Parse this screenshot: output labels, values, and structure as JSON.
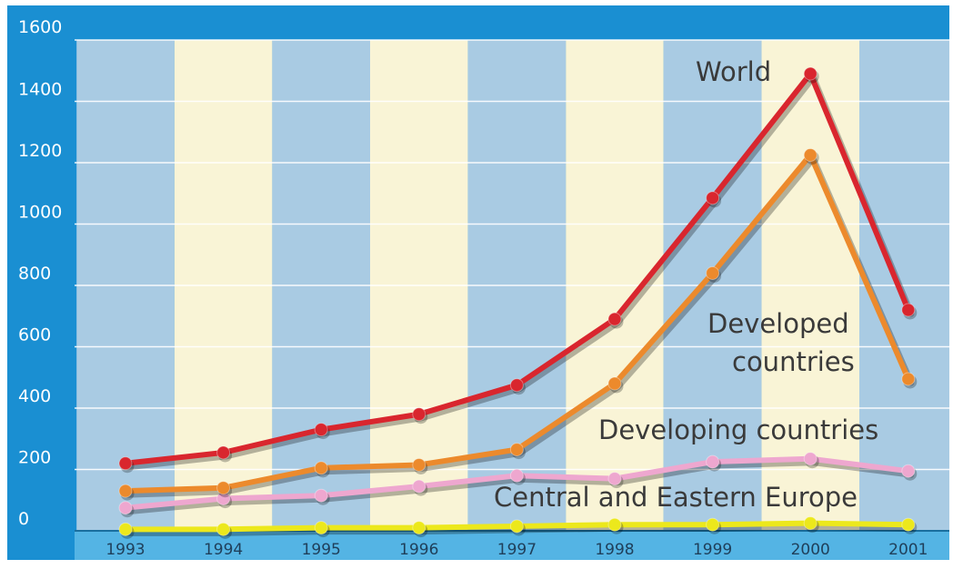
{
  "colors": {
    "frame": "#1a8fd2",
    "band_blue": "#a9cbe3",
    "band_cream": "#f9f4d6",
    "world": "#d9262e",
    "developed": "#ec8a2c",
    "developing": "#eea7cf",
    "cee": "#ece81c"
  },
  "chart_data": {
    "type": "line",
    "title": "",
    "xlabel": "",
    "ylabel": "",
    "categories": [
      "1993",
      "1994",
      "1995",
      "1996",
      "1997",
      "1998",
      "1999",
      "2000",
      "2001"
    ],
    "yticks": [
      "0",
      "200",
      "400",
      "600",
      "800",
      "1000",
      "1200",
      "1400",
      "1600"
    ],
    "ylim": [
      0,
      1600
    ],
    "grid": true,
    "legend": "inline labels",
    "series": [
      {
        "key": "world",
        "name": "World",
        "values": [
          220,
          255,
          330,
          380,
          475,
          690,
          1085,
          1490,
          720
        ]
      },
      {
        "key": "developed",
        "name": "Developed countries",
        "name_lines": [
          "Developed",
          "countries"
        ],
        "values": [
          130,
          140,
          205,
          215,
          265,
          480,
          840,
          1225,
          495
        ]
      },
      {
        "key": "developing",
        "name": "Developing countries",
        "values": [
          75,
          105,
          115,
          145,
          180,
          170,
          225,
          235,
          195
        ]
      },
      {
        "key": "cee",
        "name": "Central and Eastern Europe",
        "values": [
          5,
          5,
          10,
          10,
          15,
          20,
          20,
          25,
          20
        ]
      }
    ]
  }
}
